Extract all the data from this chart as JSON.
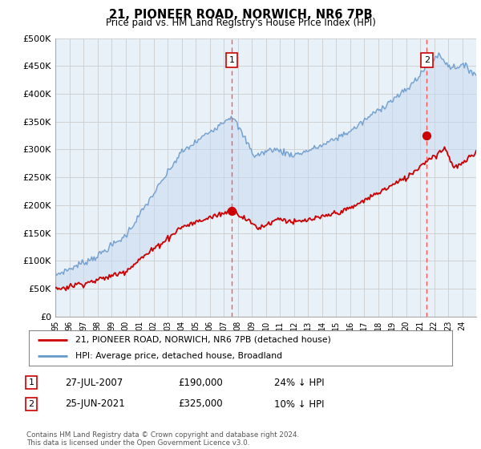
{
  "title": "21, PIONEER ROAD, NORWICH, NR6 7PB",
  "subtitle": "Price paid vs. HM Land Registry's House Price Index (HPI)",
  "hpi_color": "#6699cc",
  "price_color": "#cc0000",
  "fill_color": "#ddeeff",
  "background_color": "#ffffff",
  "grid_color": "#cccccc",
  "ylim": [
    0,
    500000
  ],
  "xlim": [
    1995,
    2025
  ],
  "yticks": [
    0,
    50000,
    100000,
    150000,
    200000,
    250000,
    300000,
    350000,
    400000,
    450000,
    500000
  ],
  "ytick_labels": [
    "£0",
    "£50K",
    "£100K",
    "£150K",
    "£200K",
    "£250K",
    "£300K",
    "£350K",
    "£400K",
    "£450K",
    "£500K"
  ],
  "transactions": [
    {
      "label": "1",
      "date": "27-JUL-2007",
      "price": 190000,
      "x_year": 2007.57,
      "note": "24% ↓ HPI"
    },
    {
      "label": "2",
      "date": "25-JUN-2021",
      "price": 325000,
      "x_year": 2021.48,
      "note": "10% ↓ HPI"
    }
  ],
  "legend_line1": "21, PIONEER ROAD, NORWICH, NR6 7PB (detached house)",
  "legend_line2": "HPI: Average price, detached house, Broadland",
  "footnote": "Contains HM Land Registry data © Crown copyright and database right 2024.\nThis data is licensed under the Open Government Licence v3.0.",
  "table_rows": [
    [
      "1",
      "27-JUL-2007",
      "£190,000",
      "24% ↓ HPI"
    ],
    [
      "2",
      "25-JUN-2021",
      "£325,000",
      "10% ↓ HPI"
    ]
  ]
}
